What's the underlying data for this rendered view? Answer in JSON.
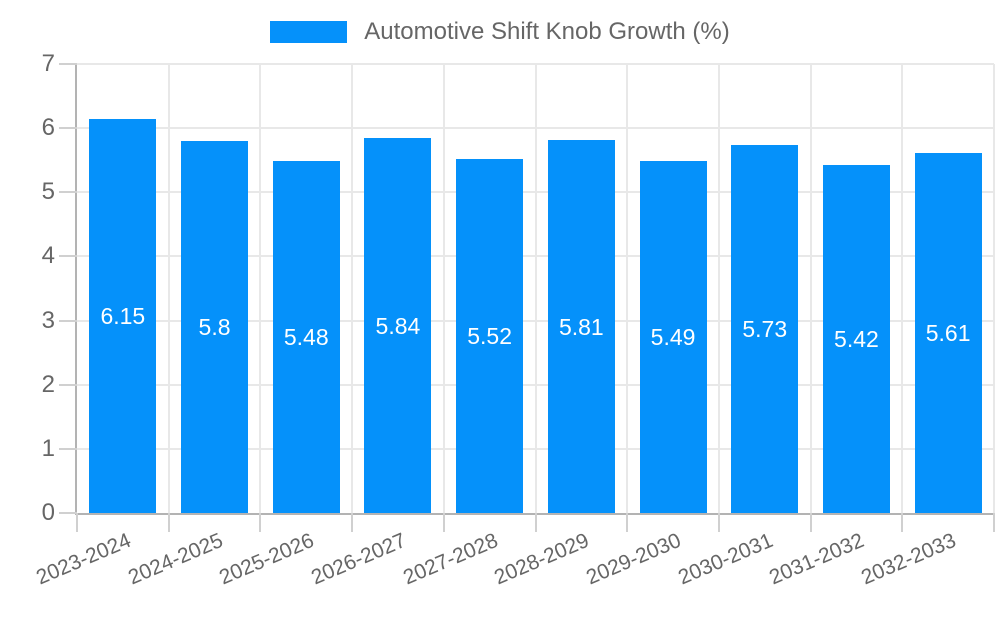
{
  "legend": {
    "label": "Automotive Shift Knob Growth (%)"
  },
  "chart_data": {
    "type": "bar",
    "title": "",
    "legend_entries": [
      "Automotive Shift Knob Growth (%)"
    ],
    "legend_position": "top-center",
    "categories": [
      "2023-2024",
      "2024-2025",
      "2025-2026",
      "2026-2027",
      "2027-2028",
      "2028-2029",
      "2029-2030",
      "2030-2031",
      "2031-2032",
      "2032-2033"
    ],
    "values": [
      6.15,
      5.8,
      5.48,
      5.84,
      5.52,
      5.81,
      5.49,
      5.73,
      5.42,
      5.61
    ],
    "xlabel": "",
    "ylabel": "",
    "ylim": [
      0,
      7
    ],
    "yticks": [
      "0",
      "1",
      "2",
      "3",
      "4",
      "5",
      "6",
      "7"
    ],
    "grid": true,
    "value_labels_position": "inside-center",
    "x_tick_rotation_deg": -23
  },
  "colors": {
    "bar": "#0591fa",
    "grid": "#e8e8e8",
    "axis": "#b3b3b3",
    "tick": "#d0d0d0",
    "tick_label": "#666666",
    "legend_text": "#666666",
    "value_label": "#ffffff",
    "background": "#ffffff"
  }
}
